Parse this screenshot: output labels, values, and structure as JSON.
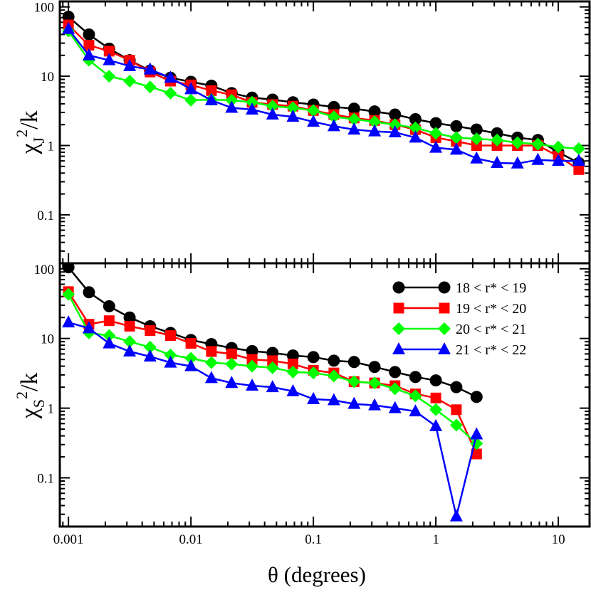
{
  "chart_data": [
    {
      "type": "line",
      "panel": "top",
      "ylabel": {
        "symbol": "χ",
        "sub": "J",
        "sup": "2",
        "rest": "/k"
      },
      "xlabel": "",
      "xscale": "log",
      "yscale": "log",
      "xlim": [
        0.00085,
        18
      ],
      "ylim": [
        0.02,
        120
      ],
      "x_ticks": [
        0.001,
        0.01,
        0.1,
        1,
        10
      ],
      "x_tick_labels": [
        "0.001",
        "0.01",
        "0.1",
        "1",
        "10"
      ],
      "y_ticks": [
        0.1,
        1,
        10,
        100
      ],
      "y_tick_labels": [
        "0.1",
        "1",
        "10",
        "100"
      ],
      "grid": false,
      "series": [
        {
          "name": "18 < r* < 19",
          "color": "#000000",
          "marker": "circle",
          "x": [
            0.001,
            0.00147,
            0.00215,
            0.00316,
            0.00464,
            0.00681,
            0.01,
            0.0147,
            0.0215,
            0.0316,
            0.0464,
            0.0681,
            0.1,
            0.147,
            0.215,
            0.316,
            0.464,
            0.681,
            1.0,
            1.47,
            2.15,
            3.16,
            4.64,
            6.81,
            10.0,
            14.7
          ],
          "y": [
            72,
            40,
            25,
            17,
            12,
            9.5,
            8.3,
            7.3,
            5.7,
            4.9,
            4.6,
            4.2,
            3.9,
            3.6,
            3.4,
            3.1,
            2.8,
            2.4,
            2.1,
            1.9,
            1.7,
            1.5,
            1.3,
            1.2,
            0.8,
            0.56
          ]
        },
        {
          "name": "19 < r* < 20",
          "color": "#ff0000",
          "marker": "square",
          "x": [
            0.001,
            0.00147,
            0.00215,
            0.00316,
            0.00464,
            0.00681,
            0.01,
            0.0147,
            0.0215,
            0.0316,
            0.0464,
            0.0681,
            0.1,
            0.147,
            0.215,
            0.316,
            0.464,
            0.681,
            1.0,
            1.47,
            2.15,
            3.16,
            4.64,
            6.81,
            10.0,
            14.7
          ],
          "y": [
            55,
            28,
            23,
            17,
            11.5,
            8.5,
            7.5,
            6.2,
            5.4,
            4.2,
            3.9,
            3.7,
            3.2,
            2.8,
            2.5,
            2.3,
            2.0,
            1.7,
            1.3,
            1.15,
            1.0,
            1.0,
            1.0,
            1.0,
            0.7,
            0.45
          ]
        },
        {
          "name": "20 < r* < 21",
          "color": "#00ff00",
          "marker": "diamond",
          "x": [
            0.001,
            0.00147,
            0.00215,
            0.00316,
            0.00464,
            0.00681,
            0.01,
            0.0147,
            0.0215,
            0.0316,
            0.0464,
            0.0681,
            0.1,
            0.147,
            0.215,
            0.316,
            0.464,
            0.681,
            1.0,
            1.47,
            2.15,
            3.16,
            4.64,
            6.81,
            10.0,
            14.7
          ],
          "y": [
            45,
            17,
            10,
            8.5,
            7,
            5.7,
            4.5,
            4.6,
            4.5,
            4.2,
            3.7,
            3.5,
            3.2,
            2.6,
            2.4,
            2.2,
            2.0,
            1.8,
            1.5,
            1.3,
            1.25,
            1.2,
            1.1,
            1.05,
            0.95,
            0.9
          ]
        },
        {
          "name": "21 < r* < 22",
          "color": "#0000ff",
          "marker": "triangle",
          "x": [
            0.001,
            0.00147,
            0.00215,
            0.00316,
            0.00464,
            0.00681,
            0.01,
            0.0147,
            0.0215,
            0.0316,
            0.0464,
            0.0681,
            0.1,
            0.147,
            0.215,
            0.316,
            0.464,
            0.681,
            1.0,
            1.47,
            2.15,
            3.16,
            4.64,
            6.81,
            10.0,
            14.7
          ],
          "y": [
            48,
            20,
            17,
            14,
            12.5,
            9.5,
            6.5,
            4.5,
            3.5,
            3.3,
            2.8,
            2.6,
            2.2,
            1.9,
            1.7,
            1.6,
            1.55,
            1.3,
            0.93,
            0.87,
            0.65,
            0.56,
            0.55,
            0.62,
            0.6,
            0.6
          ]
        }
      ]
    },
    {
      "type": "line",
      "panel": "bottom",
      "ylabel": {
        "symbol": "χ",
        "sub": "S",
        "sup": "2",
        "rest": "/k"
      },
      "xlabel": "θ (degrees)",
      "xscale": "log",
      "yscale": "log",
      "xlim": [
        0.00085,
        18
      ],
      "ylim": [
        0.02,
        120
      ],
      "x_ticks": [
        0.001,
        0.01,
        0.1,
        1,
        10
      ],
      "x_tick_labels": [
        "0.001",
        "0.01",
        "0.1",
        "1",
        "10"
      ],
      "y_ticks": [
        0.1,
        1,
        10,
        100
      ],
      "y_tick_labels": [
        "0.1",
        "1",
        "10",
        "100"
      ],
      "grid": false,
      "legend_position": "top-right",
      "series": [
        {
          "name": "18 < r* < 19",
          "color": "#000000",
          "marker": "circle",
          "x": [
            0.001,
            0.00147,
            0.00215,
            0.00316,
            0.00464,
            0.00681,
            0.01,
            0.0147,
            0.0215,
            0.0316,
            0.0464,
            0.0681,
            0.1,
            0.147,
            0.215,
            0.316,
            0.464,
            0.681,
            1.0,
            1.47,
            2.15
          ],
          "y": [
            105,
            46,
            29,
            20,
            15,
            12,
            9.5,
            8.3,
            7.3,
            6.6,
            6.2,
            5.7,
            5.4,
            4.8,
            4.6,
            3.9,
            3.3,
            2.8,
            2.5,
            2.0,
            1.45
          ]
        },
        {
          "name": "19 < r* < 20",
          "color": "#ff0000",
          "marker": "square",
          "x": [
            0.001,
            0.00147,
            0.00215,
            0.00316,
            0.00464,
            0.00681,
            0.01,
            0.0147,
            0.0215,
            0.0316,
            0.0464,
            0.0681,
            0.1,
            0.147,
            0.215,
            0.316,
            0.464,
            0.681,
            1.0,
            1.47,
            2.15
          ],
          "y": [
            47,
            16,
            18,
            15,
            13,
            11,
            8.5,
            6.5,
            6.0,
            5.0,
            4.8,
            4.3,
            3.5,
            3.2,
            2.4,
            2.3,
            2.1,
            1.6,
            1.4,
            0.95,
            0.22
          ]
        },
        {
          "name": "20 < r* < 21",
          "color": "#00ff00",
          "marker": "diamond",
          "x": [
            0.001,
            0.00147,
            0.00215,
            0.00316,
            0.00464,
            0.00681,
            0.01,
            0.0147,
            0.0215,
            0.0316,
            0.0464,
            0.0681,
            0.1,
            0.147,
            0.215,
            0.316,
            0.464,
            0.681,
            1.0,
            1.47,
            2.15
          ],
          "y": [
            43,
            12,
            11,
            9,
            7.5,
            5.8,
            5.2,
            4.5,
            4.3,
            4.0,
            3.8,
            3.3,
            3.2,
            2.9,
            2.4,
            2.3,
            1.9,
            1.5,
            0.95,
            0.57,
            0.31
          ]
        },
        {
          "name": "21 < r* < 22",
          "color": "#0000ff",
          "marker": "triangle",
          "x": [
            0.001,
            0.00147,
            0.00215,
            0.00316,
            0.00464,
            0.00681,
            0.01,
            0.0147,
            0.0215,
            0.0316,
            0.0464,
            0.0681,
            0.1,
            0.147,
            0.215,
            0.316,
            0.464,
            0.681,
            1.0,
            1.47,
            2.15
          ],
          "y": [
            17,
            14,
            8.5,
            6.5,
            5.5,
            4.5,
            4.0,
            2.7,
            2.3,
            2.1,
            2.0,
            1.75,
            1.35,
            1.3,
            1.15,
            1.1,
            1.0,
            0.9,
            0.55,
            0.028,
            0.42
          ]
        }
      ]
    }
  ]
}
